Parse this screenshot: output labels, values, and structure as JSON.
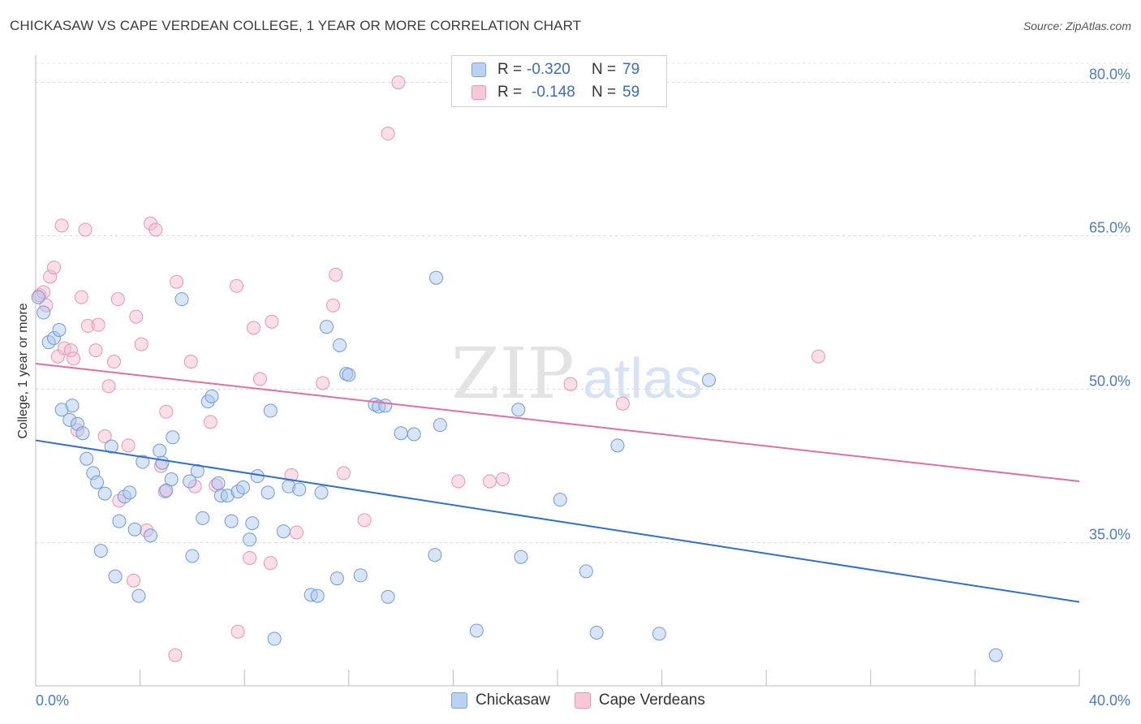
{
  "header": {
    "title": "CHICKASAW VS CAPE VERDEAN COLLEGE, 1 YEAR OR MORE CORRELATION CHART",
    "source": "Source: ZipAtlas.com"
  },
  "legend": {
    "rows": [
      {
        "r_label": "R =",
        "r_value": "-0.320",
        "n_label": "N =",
        "n_value": "79"
      },
      {
        "r_label": "R =",
        "r_value": "-0.148",
        "n_label": "N =",
        "n_value": "59"
      }
    ],
    "bottom": [
      "Chickasaw",
      "Cape Verdeans"
    ]
  },
  "watermark": {
    "zip": "ZIP",
    "atlas": "atlas"
  },
  "chart_data": {
    "type": "scatter",
    "title": "CHICKASAW VS CAPE VERDEAN COLLEGE, 1 YEAR OR MORE CORRELATION CHART",
    "xlabel": "",
    "ylabel": "College, 1 year or more",
    "xlim": [
      0,
      40
    ],
    "ylim": [
      21.0,
      82.5
    ],
    "x_tick_labels": [
      "0.0%",
      "40.0%"
    ],
    "y_ticks": [
      35,
      50,
      65,
      80
    ],
    "y_tick_labels": [
      "35.0%",
      "50.0%",
      "65.0%",
      "80.0%"
    ],
    "grid": true,
    "legend_position": "top-center",
    "colors": {
      "chickasaw_fill": "#a9c6ef",
      "chickasaw_stroke": "#6f9ad8",
      "chickasaw_line": "#2f6fd0",
      "cape_fill": "#f5b8cb",
      "cape_stroke": "#e994b0",
      "cape_line": "#e4709a",
      "tick": "#4a7cc7"
    },
    "series": [
      {
        "name": "Chickasaw",
        "r": -0.32,
        "n": 79,
        "trend": {
          "x": [
            0,
            40
          ],
          "y": [
            45.0,
            29.2
          ]
        },
        "points": [
          [
            0.1,
            59.0
          ],
          [
            0.3,
            57.5
          ],
          [
            0.5,
            54.6
          ],
          [
            0.7,
            55.0
          ],
          [
            0.9,
            55.8
          ],
          [
            1.0,
            48.0
          ],
          [
            1.3,
            47.0
          ],
          [
            1.4,
            48.4
          ],
          [
            1.6,
            46.6
          ],
          [
            1.8,
            45.7
          ],
          [
            1.95,
            43.2
          ],
          [
            2.2,
            41.8
          ],
          [
            2.35,
            40.9
          ],
          [
            2.5,
            34.2
          ],
          [
            2.65,
            39.8
          ],
          [
            2.9,
            44.4
          ],
          [
            3.05,
            31.7
          ],
          [
            3.2,
            37.1
          ],
          [
            3.4,
            39.5
          ],
          [
            3.6,
            39.9
          ],
          [
            3.8,
            36.3
          ],
          [
            3.95,
            29.8
          ],
          [
            4.1,
            42.9
          ],
          [
            4.4,
            35.7
          ],
          [
            4.75,
            44.0
          ],
          [
            4.85,
            42.8
          ],
          [
            5.0,
            40.1
          ],
          [
            5.2,
            41.2
          ],
          [
            5.25,
            45.3
          ],
          [
            5.6,
            58.8
          ],
          [
            5.9,
            41.0
          ],
          [
            6.0,
            33.7
          ],
          [
            6.2,
            42.0
          ],
          [
            6.4,
            37.4
          ],
          [
            6.6,
            48.8
          ],
          [
            6.75,
            49.3
          ],
          [
            7.0,
            40.8
          ],
          [
            7.1,
            39.6
          ],
          [
            7.35,
            39.6
          ],
          [
            7.5,
            37.1
          ],
          [
            7.75,
            40.0
          ],
          [
            7.95,
            40.4
          ],
          [
            8.2,
            35.3
          ],
          [
            8.3,
            36.9
          ],
          [
            8.5,
            41.5
          ],
          [
            8.9,
            39.9
          ],
          [
            9.0,
            47.9
          ],
          [
            9.15,
            25.6
          ],
          [
            9.5,
            36.1
          ],
          [
            9.7,
            40.5
          ],
          [
            10.1,
            40.2
          ],
          [
            10.55,
            29.9
          ],
          [
            10.8,
            29.8
          ],
          [
            10.95,
            39.9
          ],
          [
            11.15,
            56.1
          ],
          [
            11.55,
            31.5
          ],
          [
            11.65,
            54.3
          ],
          [
            11.9,
            51.5
          ],
          [
            12.0,
            51.4
          ],
          [
            12.45,
            31.8
          ],
          [
            13.0,
            48.5
          ],
          [
            13.15,
            48.3
          ],
          [
            13.5,
            29.7
          ],
          [
            13.4,
            48.4
          ],
          [
            14.0,
            45.7
          ],
          [
            14.5,
            45.6
          ],
          [
            15.3,
            33.8
          ],
          [
            15.5,
            46.5
          ],
          [
            15.35,
            60.9
          ],
          [
            16.9,
            26.4
          ],
          [
            18.5,
            48.0
          ],
          [
            18.6,
            33.6
          ],
          [
            20.1,
            39.2
          ],
          [
            21.1,
            32.2
          ],
          [
            21.5,
            26.2
          ],
          [
            22.3,
            44.5
          ],
          [
            23.9,
            26.1
          ],
          [
            25.8,
            50.9
          ],
          [
            36.8,
            24.0
          ]
        ]
      },
      {
        "name": "Cape Verdeans",
        "r": -0.148,
        "n": 59,
        "trend": {
          "x": [
            0,
            40
          ],
          "y": [
            52.5,
            41.0
          ]
        },
        "points": [
          [
            0.15,
            59.2
          ],
          [
            0.4,
            58.2
          ],
          [
            0.55,
            61.0
          ],
          [
            0.7,
            61.9
          ],
          [
            0.85,
            53.2
          ],
          [
            1.0,
            66.0
          ],
          [
            1.1,
            54.0
          ],
          [
            1.35,
            53.8
          ],
          [
            1.45,
            53.0
          ],
          [
            1.6,
            46.0
          ],
          [
            1.75,
            59.0
          ],
          [
            1.9,
            65.6
          ],
          [
            2.0,
            56.2
          ],
          [
            2.3,
            53.8
          ],
          [
            2.4,
            56.3
          ],
          [
            2.65,
            45.4
          ],
          [
            2.8,
            50.3
          ],
          [
            3.0,
            52.7
          ],
          [
            3.15,
            58.8
          ],
          [
            3.2,
            39.1
          ],
          [
            3.55,
            44.5
          ],
          [
            3.75,
            31.3
          ],
          [
            3.85,
            57.1
          ],
          [
            4.05,
            54.4
          ],
          [
            4.25,
            36.2
          ],
          [
            4.4,
            66.2
          ],
          [
            4.6,
            65.6
          ],
          [
            4.8,
            42.5
          ],
          [
            4.95,
            40.0
          ],
          [
            5.0,
            47.8
          ],
          [
            5.35,
            24.0
          ],
          [
            5.4,
            60.5
          ],
          [
            5.95,
            52.7
          ],
          [
            6.1,
            40.5
          ],
          [
            6.7,
            46.8
          ],
          [
            6.9,
            40.6
          ],
          [
            7.75,
            26.3
          ],
          [
            7.7,
            60.1
          ],
          [
            8.2,
            33.5
          ],
          [
            8.35,
            56.0
          ],
          [
            8.6,
            51.0
          ],
          [
            9.0,
            33.0
          ],
          [
            9.05,
            56.6
          ],
          [
            9.8,
            41.6
          ],
          [
            10.0,
            36.0
          ],
          [
            11.0,
            50.6
          ],
          [
            11.4,
            58.2
          ],
          [
            11.5,
            61.2
          ],
          [
            11.8,
            41.8
          ],
          [
            12.6,
            37.2
          ],
          [
            13.5,
            75.0
          ],
          [
            13.9,
            80.0
          ],
          [
            16.2,
            41.0
          ],
          [
            17.4,
            41.0
          ],
          [
            17.9,
            41.2
          ],
          [
            20.5,
            50.5
          ],
          [
            22.5,
            48.6
          ],
          [
            30.0,
            53.2
          ],
          [
            0.3,
            59.5
          ]
        ]
      }
    ]
  }
}
